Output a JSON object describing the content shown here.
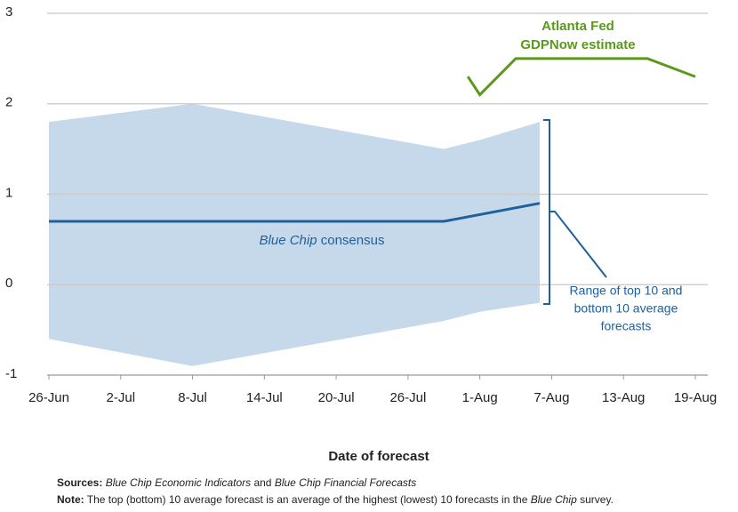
{
  "chart_data": {
    "type": "line",
    "xlabel": "Date of forecast",
    "xlim": [
      "26-Jun",
      "19-Aug"
    ],
    "xticks": [
      "26-Jun",
      "2-Jul",
      "8-Jul",
      "14-Jul",
      "20-Jul",
      "26-Jul",
      "1-Aug",
      "7-Aug",
      "13-Aug",
      "19-Aug"
    ],
    "ylim": [
      -1,
      3
    ],
    "yticks": [
      -1,
      0,
      1,
      2,
      3
    ],
    "grid": true,
    "band": {
      "color": "#c5d9ea",
      "x": [
        "26-Jun",
        "8-Jul",
        "29-Jul",
        "1-Aug",
        "6-Aug"
      ],
      "upper": [
        1.8,
        2.0,
        1.5,
        1.6,
        1.8
      ],
      "lower": [
        -0.6,
        -0.9,
        -0.4,
        -0.3,
        -0.2
      ]
    },
    "series": [
      {
        "color": "#1f5f9a",
        "x": [
          "26-Jun",
          "29-Jul",
          "6-Aug"
        ],
        "values": [
          0.7,
          0.7,
          0.9
        ]
      },
      {
        "color": "#5a9a1a",
        "x": [
          "31-Jul",
          "1-Aug",
          "4-Aug",
          "15-Aug",
          "19-Aug"
        ],
        "values": [
          2.3,
          2.1,
          2.5,
          2.5,
          2.3
        ]
      }
    ],
    "annotations": {
      "gdpnow": [
        "Atlanta Fed",
        "GDPNow estimate"
      ],
      "consensus": [
        "Blue Chip",
        " consensus"
      ],
      "range": [
        "Range of top 10 and",
        "bottom 10 average",
        "forecasts"
      ]
    },
    "sources": {
      "label": "Sources:",
      "parts": [
        " ",
        "Blue Chip Economic Indicators",
        " and ",
        "Blue Chip Financial Forecasts"
      ]
    },
    "note": {
      "label": "Note:",
      "parts": [
        " The top (bottom) 10 average forecast is an average of the highest (lowest) 10 forecasts in the ",
        "Blue Chip",
        " survey."
      ]
    }
  }
}
